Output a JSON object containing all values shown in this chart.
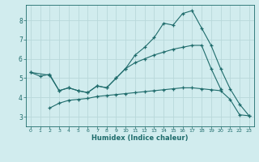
{
  "background_color": "#d1ecee",
  "grid_color": "#b8d8da",
  "line_color": "#1e6b6b",
  "xlabel": "Humidex (Indice chaleur)",
  "xlim": [
    -0.5,
    23.5
  ],
  "ylim": [
    2.5,
    8.8
  ],
  "yticks": [
    3,
    4,
    5,
    6,
    7,
    8
  ],
  "xticks": [
    0,
    1,
    2,
    3,
    4,
    5,
    6,
    7,
    8,
    9,
    10,
    11,
    12,
    13,
    14,
    15,
    16,
    17,
    18,
    19,
    20,
    21,
    22,
    23
  ],
  "curve1_x": [
    0,
    1,
    2,
    3,
    4,
    5,
    6,
    7,
    8,
    9,
    10,
    11,
    12,
    13,
    14,
    15,
    16,
    17,
    18,
    19,
    20,
    21,
    22,
    23
  ],
  "curve1_y": [
    5.3,
    5.1,
    5.2,
    4.35,
    4.5,
    4.35,
    4.25,
    4.6,
    4.5,
    5.0,
    5.5,
    6.2,
    6.6,
    7.1,
    7.85,
    7.75,
    8.35,
    8.5,
    7.6,
    6.7,
    5.5,
    4.45,
    3.65,
    3.05
  ],
  "curve2_x": [
    0,
    2,
    3,
    4,
    5,
    6,
    7,
    8,
    9,
    10,
    11,
    12,
    13,
    14,
    15,
    16,
    17,
    18,
    19,
    20
  ],
  "curve2_y": [
    5.3,
    5.15,
    4.35,
    4.5,
    4.35,
    4.25,
    4.6,
    4.5,
    5.0,
    5.5,
    5.8,
    6.0,
    6.2,
    6.35,
    6.5,
    6.6,
    6.7,
    6.7,
    5.5,
    4.45
  ],
  "curve3_x": [
    2,
    3,
    4,
    5,
    6,
    7,
    8,
    9,
    10,
    11,
    12,
    13,
    14,
    15,
    16,
    17,
    18,
    19,
    20,
    21,
    22,
    23
  ],
  "curve3_y": [
    3.45,
    3.7,
    3.85,
    3.9,
    3.95,
    4.05,
    4.1,
    4.15,
    4.2,
    4.25,
    4.3,
    4.35,
    4.4,
    4.45,
    4.5,
    4.5,
    4.45,
    4.4,
    4.35,
    3.9,
    3.1,
    3.05
  ]
}
